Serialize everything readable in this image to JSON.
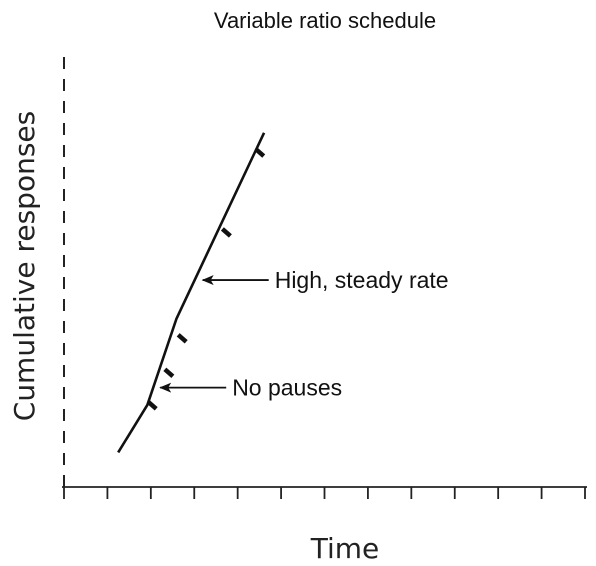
{
  "chart_data": {
    "type": "line",
    "title": "Variable ratio schedule",
    "xlabel": "Time",
    "ylabel": "Cumulative responses",
    "x_tick_count": 13,
    "series": [
      {
        "values": [
          [
            1.3,
            0.8
          ],
          [
            2.0,
            1.9
          ],
          [
            2.7,
            3.9
          ],
          [
            4.8,
            8.2
          ]
        ]
      }
    ],
    "reinforcement_marks": [
      [
        2.02,
        1.95
      ],
      [
        2.42,
        2.7
      ],
      [
        2.74,
        3.5
      ],
      [
        3.8,
        5.95
      ],
      [
        4.6,
        7.8
      ]
    ],
    "annotations": [
      {
        "text": "High, steady rate",
        "arrow_to": [
          3.28,
          4.79
        ]
      },
      {
        "text": "No pauses",
        "arrow_to": [
          2.26,
          2.3
        ]
      }
    ],
    "xlim": [
      0,
      12.5
    ],
    "ylim": [
      0,
      10
    ]
  }
}
